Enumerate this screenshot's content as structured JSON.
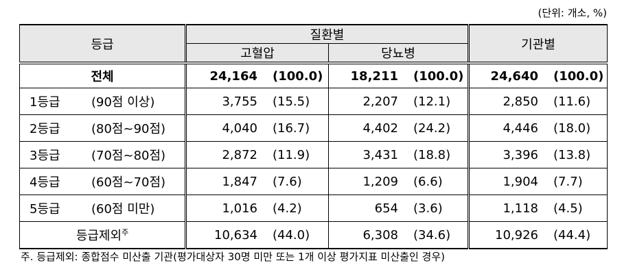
{
  "unit": "(단위: 개소, %)",
  "table": {
    "header": {
      "grade": "등급",
      "disease": "질환별",
      "hypertension": "고혈압",
      "diabetes": "당뇨병",
      "institution": "기관별"
    },
    "total": {
      "label": "전체",
      "cells": [
        [
          "24,164",
          "(100.0)"
        ],
        [
          "18,211",
          "(100.0)"
        ],
        [
          "24,640",
          "(100.0)"
        ]
      ]
    },
    "rows": [
      {
        "grade": "1등급",
        "range": "(90점 이상)",
        "cells": [
          [
            "3,755",
            "(15.5)"
          ],
          [
            "2,207",
            "(12.1)"
          ],
          [
            "2,850",
            "(11.6)"
          ]
        ]
      },
      {
        "grade": "2등급",
        "range": "(80점~90점)",
        "cells": [
          [
            "4,040",
            "(16.7)"
          ],
          [
            "4,402",
            "(24.2)"
          ],
          [
            "4,446",
            "(18.0)"
          ]
        ]
      },
      {
        "grade": "3등급",
        "range": "(70점~80점)",
        "cells": [
          [
            "2,872",
            "(11.9)"
          ],
          [
            "3,431",
            "(18.8)"
          ],
          [
            "3,396",
            "(13.8)"
          ]
        ]
      },
      {
        "grade": "4등급",
        "range": "(60점~70점)",
        "cells": [
          [
            "1,847",
            "(7.6)"
          ],
          [
            "1,209",
            "(6.6)"
          ],
          [
            "1,904",
            "(7.7)"
          ]
        ]
      },
      {
        "grade": "5등급",
        "range": "(60점 미만)",
        "cells": [
          [
            "1,016",
            "(4.2)"
          ],
          [
            "654",
            "(3.6)"
          ],
          [
            "1,118",
            "(4.5)"
          ]
        ]
      }
    ],
    "excluded": {
      "label": "등급제외",
      "mark": "주",
      "cells": [
        [
          "10,634",
          "(44.0)"
        ],
        [
          "6,308",
          "(34.6)"
        ],
        [
          "10,926",
          "(44.4)"
        ]
      ]
    }
  },
  "footnote": "주. 등급제외: 종합점수 미산출 기관(평가대상자 30명 미만 또는 1개 이상 평가지표 미산출인 경우)"
}
